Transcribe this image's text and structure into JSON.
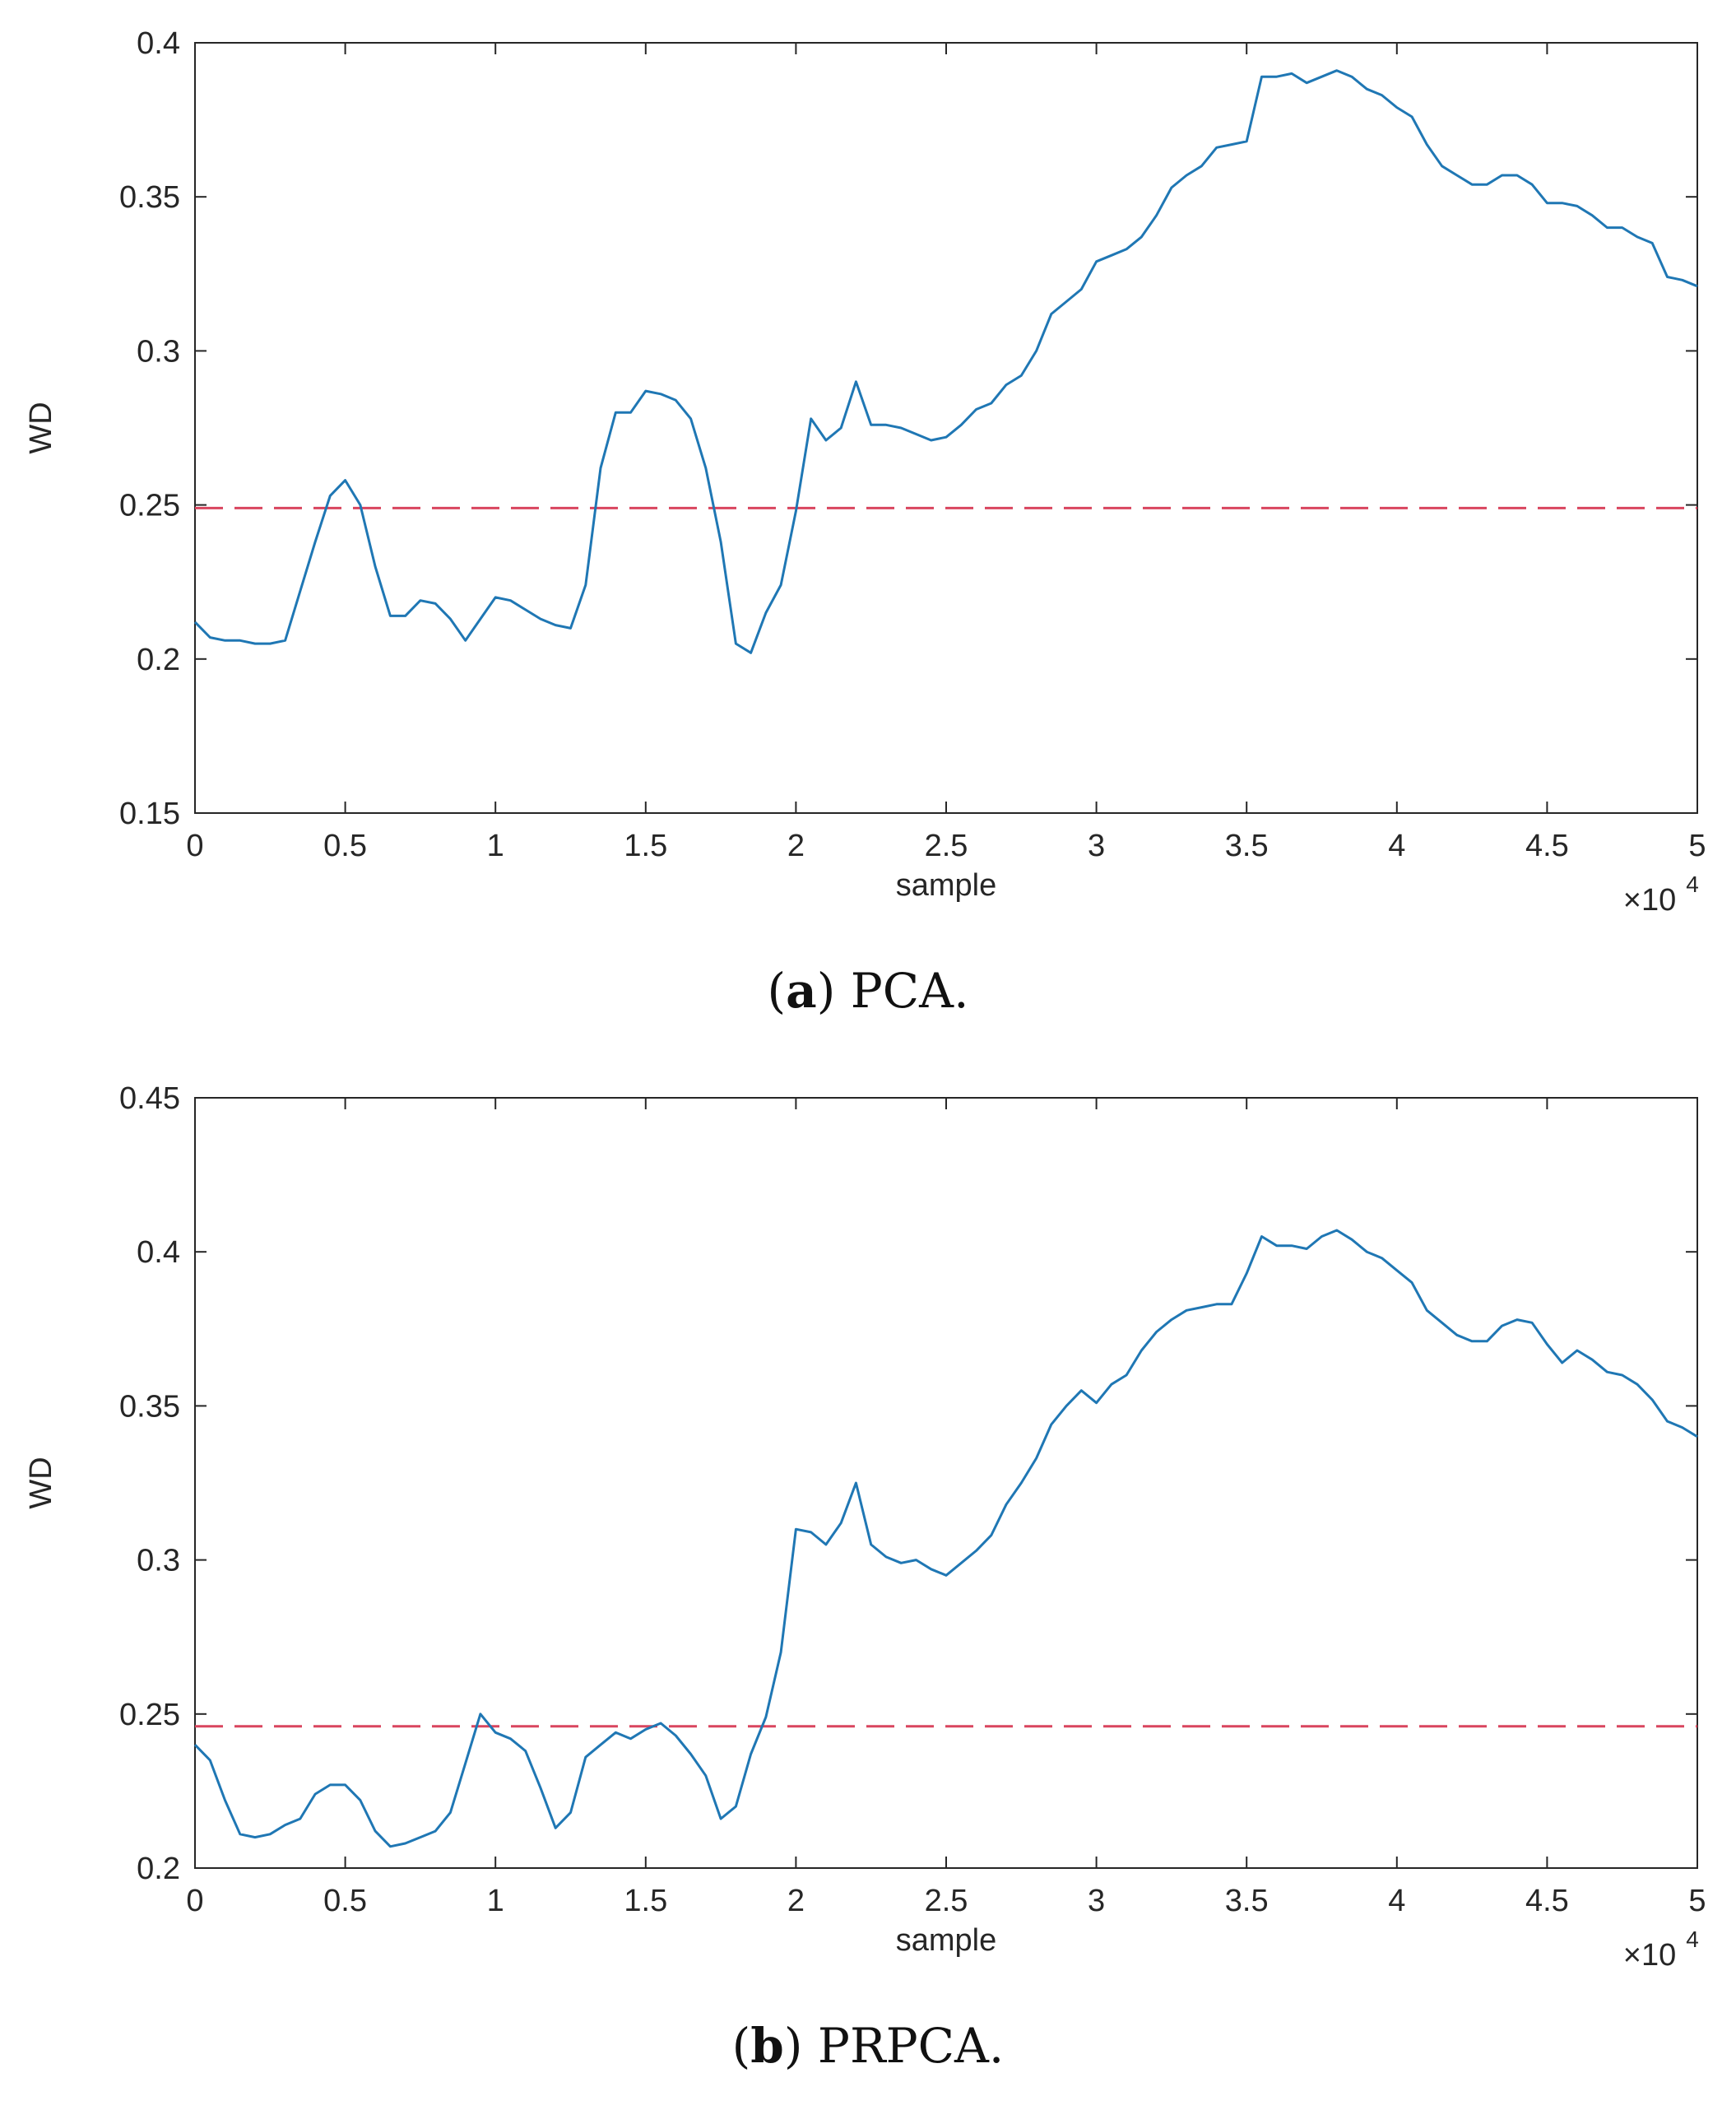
{
  "chart_data": [
    {
      "type": "line",
      "caption_letter": "a",
      "caption_text": "PCA.",
      "xlabel": "sample",
      "ylabel": "WD",
      "x_multiplier": "×10",
      "x_multiplier_exp": "4",
      "xlim": [
        0,
        5
      ],
      "ylim": [
        0.15,
        0.4
      ],
      "xticks": [
        "0",
        "0.5",
        "1",
        "1.5",
        "2",
        "2.5",
        "3",
        "3.5",
        "4",
        "4.5",
        "5"
      ],
      "yticks": [
        "0.15",
        "0.2",
        "0.25",
        "0.3",
        "0.35",
        "0.4"
      ],
      "threshold": 0.249,
      "colors": {
        "series": "#1f77b4",
        "threshold": "#d9455f",
        "axes": "#262626"
      },
      "series": [
        {
          "x": [
            0,
            0.05,
            0.1,
            0.15,
            0.2,
            0.25,
            0.3,
            0.35,
            0.4,
            0.45,
            0.5,
            0.55,
            0.6,
            0.65,
            0.7,
            0.75,
            0.8,
            0.85,
            0.9,
            0.95,
            1.0,
            1.05,
            1.1,
            1.15,
            1.2,
            1.25,
            1.3,
            1.35,
            1.4,
            1.45,
            1.5,
            1.55,
            1.6,
            1.65,
            1.7,
            1.75,
            1.8,
            1.85,
            1.9,
            1.95,
            2.0,
            2.05,
            2.1,
            2.15,
            2.2,
            2.25,
            2.3,
            2.35,
            2.4,
            2.45,
            2.5,
            2.55,
            2.6,
            2.65,
            2.7,
            2.75,
            2.8,
            2.85,
            2.9,
            2.95,
            3.0,
            3.05,
            3.1,
            3.15,
            3.2,
            3.25,
            3.3,
            3.35,
            3.4,
            3.45,
            3.5,
            3.55,
            3.6,
            3.65,
            3.7,
            3.75,
            3.8,
            3.85,
            3.9,
            3.95,
            4.0,
            4.05,
            4.1,
            4.15,
            4.2,
            4.25,
            4.3,
            4.35,
            4.4,
            4.45,
            4.5,
            4.55,
            4.6,
            4.65,
            4.7,
            4.75,
            4.8,
            4.85,
            4.9,
            4.95,
            5.0
          ],
          "y": [
            0.212,
            0.207,
            0.206,
            0.206,
            0.205,
            0.205,
            0.206,
            0.222,
            0.238,
            0.253,
            0.258,
            0.25,
            0.23,
            0.214,
            0.214,
            0.219,
            0.218,
            0.213,
            0.206,
            0.213,
            0.22,
            0.219,
            0.216,
            0.213,
            0.211,
            0.21,
            0.224,
            0.262,
            0.28,
            0.28,
            0.287,
            0.286,
            0.284,
            0.278,
            0.262,
            0.238,
            0.205,
            0.202,
            0.215,
            0.224,
            0.248,
            0.278,
            0.271,
            0.275,
            0.29,
            0.276,
            0.276,
            0.275,
            0.273,
            0.271,
            0.272,
            0.276,
            0.281,
            0.283,
            0.289,
            0.292,
            0.3,
            0.312,
            0.316,
            0.32,
            0.329,
            0.331,
            0.333,
            0.337,
            0.344,
            0.353,
            0.357,
            0.36,
            0.366,
            0.367,
            0.368,
            0.389,
            0.389,
            0.39,
            0.387,
            0.389,
            0.391,
            0.389,
            0.385,
            0.383,
            0.379,
            0.376,
            0.367,
            0.36,
            0.357,
            0.354,
            0.354,
            0.357,
            0.357,
            0.354,
            0.348,
            0.348,
            0.347,
            0.344,
            0.34,
            0.34,
            0.337,
            0.335,
            0.324,
            0.323,
            0.321
          ]
        }
      ]
    },
    {
      "type": "line",
      "caption_letter": "b",
      "caption_text": "PRPCA.",
      "xlabel": "sample",
      "ylabel": "WD",
      "x_multiplier": "×10",
      "x_multiplier_exp": "4",
      "xlim": [
        0,
        5
      ],
      "ylim": [
        0.2,
        0.45
      ],
      "xticks": [
        "0",
        "0.5",
        "1",
        "1.5",
        "2",
        "2.5",
        "3",
        "3.5",
        "4",
        "4.5",
        "5"
      ],
      "yticks": [
        "0.2",
        "0.25",
        "0.3",
        "0.35",
        "0.4",
        "0.45"
      ],
      "threshold": 0.246,
      "colors": {
        "series": "#1f77b4",
        "threshold": "#d9455f",
        "axes": "#262626"
      },
      "series": [
        {
          "x": [
            0,
            0.05,
            0.1,
            0.15,
            0.2,
            0.25,
            0.3,
            0.35,
            0.4,
            0.45,
            0.5,
            0.55,
            0.6,
            0.65,
            0.7,
            0.75,
            0.8,
            0.85,
            0.9,
            0.95,
            1.0,
            1.05,
            1.1,
            1.15,
            1.2,
            1.25,
            1.3,
            1.35,
            1.4,
            1.45,
            1.5,
            1.55,
            1.6,
            1.65,
            1.7,
            1.75,
            1.8,
            1.85,
            1.9,
            1.95,
            2.0,
            2.05,
            2.1,
            2.15,
            2.2,
            2.25,
            2.3,
            2.35,
            2.4,
            2.45,
            2.5,
            2.55,
            2.6,
            2.65,
            2.7,
            2.75,
            2.8,
            2.85,
            2.9,
            2.95,
            3.0,
            3.05,
            3.1,
            3.15,
            3.2,
            3.25,
            3.3,
            3.35,
            3.4,
            3.45,
            3.5,
            3.55,
            3.6,
            3.65,
            3.7,
            3.75,
            3.8,
            3.85,
            3.9,
            3.95,
            4.0,
            4.05,
            4.1,
            4.15,
            4.2,
            4.25,
            4.3,
            4.35,
            4.4,
            4.45,
            4.5,
            4.55,
            4.6,
            4.65,
            4.7,
            4.75,
            4.8,
            4.85,
            4.9,
            4.95,
            5.0
          ],
          "y": [
            0.24,
            0.235,
            0.222,
            0.211,
            0.21,
            0.211,
            0.214,
            0.216,
            0.224,
            0.227,
            0.227,
            0.222,
            0.212,
            0.207,
            0.208,
            0.21,
            0.212,
            0.218,
            0.234,
            0.25,
            0.244,
            0.242,
            0.238,
            0.226,
            0.213,
            0.218,
            0.236,
            0.24,
            0.244,
            0.242,
            0.245,
            0.247,
            0.243,
            0.237,
            0.23,
            0.216,
            0.22,
            0.237,
            0.249,
            0.27,
            0.31,
            0.309,
            0.305,
            0.312,
            0.325,
            0.305,
            0.301,
            0.299,
            0.3,
            0.297,
            0.295,
            0.299,
            0.303,
            0.308,
            0.318,
            0.325,
            0.333,
            0.344,
            0.35,
            0.355,
            0.351,
            0.357,
            0.36,
            0.368,
            0.374,
            0.378,
            0.381,
            0.382,
            0.383,
            0.383,
            0.393,
            0.405,
            0.402,
            0.402,
            0.401,
            0.405,
            0.407,
            0.404,
            0.4,
            0.398,
            0.394,
            0.39,
            0.381,
            0.377,
            0.373,
            0.371,
            0.371,
            0.376,
            0.378,
            0.377,
            0.37,
            0.364,
            0.368,
            0.365,
            0.361,
            0.36,
            0.357,
            0.352,
            0.345,
            0.343,
            0.34
          ]
        }
      ]
    }
  ]
}
